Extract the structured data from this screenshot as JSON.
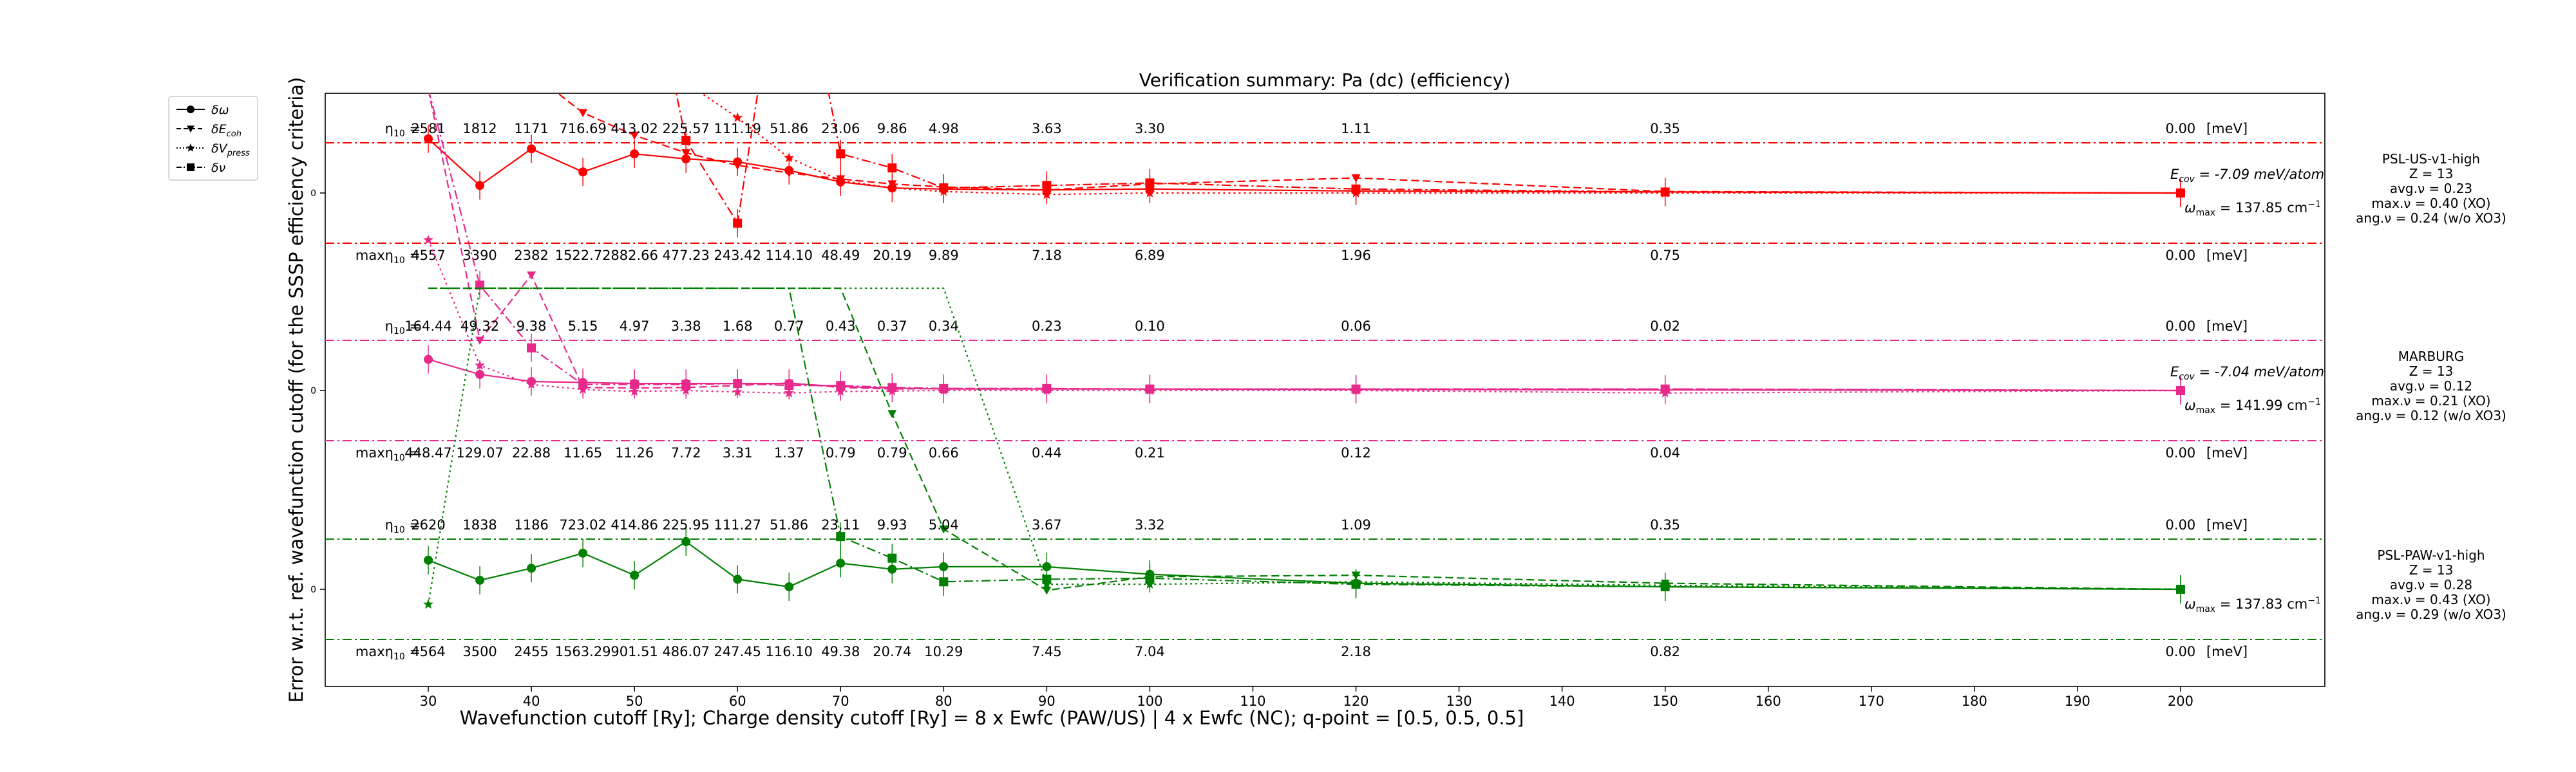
{
  "chart_data": {
    "type": "line",
    "title": "Verification summary: Pa (dc) (efficiency)",
    "xlabel": "Wavefunction cutoff [Ry]; Charge density cutoff [Ry] = 8 x Ewfc (PAW/US) | 4 x Ewfc (NC); q-point = [0.5, 0.5, 0.5]",
    "ylabel": "Error w.r.t. ref. wavefunction cutoff (for the SSSP efficiency criteria)",
    "xlim": [
      20,
      214
    ],
    "xticks": [
      30,
      40,
      50,
      60,
      70,
      80,
      90,
      100,
      110,
      120,
      130,
      140,
      150,
      160,
      170,
      180,
      190,
      200
    ],
    "ytick_label": "0",
    "legend_position": "top-left, outside axes",
    "legend": [
      {
        "label": "δω",
        "marker": "circle",
        "linestyle": "solid"
      },
      {
        "label": "δE_coh",
        "marker": "triangle-down",
        "linestyle": "dashed"
      },
      {
        "label": "δV_press",
        "marker": "star",
        "linestyle": "dotted"
      },
      {
        "label": "δν",
        "marker": "square",
        "linestyle": "dashdot"
      }
    ],
    "cutoffs": [
      30,
      35,
      40,
      45,
      50,
      55,
      60,
      65,
      70,
      75,
      80,
      90,
      100,
      120,
      150,
      200
    ],
    "unit_label": "[meV]",
    "eta_prefix": "η",
    "eta_sub": "10",
    "eta_suffix": " = ",
    "max_prefix": "max",
    "panels": [
      {
        "name": "PSL-US-v1-high",
        "color": "#ff0000",
        "info": [
          "PSL-US-v1-high",
          "Z = 13",
          "avg.ν = 0.23",
          "max.ν = 0.40 (XO)",
          "ang.ν = 0.24 (w/o XO3)"
        ],
        "ecov_label": "E",
        "ecov_sub": "cov",
        "ecov_value": " = -7.09 meV/atom",
        "omega_label": "ω",
        "omega_sub": "max",
        "omega_value": " = 137.85 cm",
        "eta_values": [
          "2581",
          "1812",
          "1171",
          "716.69",
          "413.02",
          "225.57",
          "111.19",
          "51.86",
          "23.06",
          "9.86",
          "4.98",
          "3.63",
          "3.30",
          "1.11",
          "0.35",
          "0.00"
        ],
        "max_eta_values": [
          "4557",
          "3390",
          "2382",
          "1522.72",
          "882.66",
          "477.23",
          "243.42",
          "114.10",
          "48.49",
          "20.19",
          "9.89",
          "7.18",
          "6.89",
          "1.96",
          "0.75",
          "0.00"
        ],
        "series": [
          {
            "name": "δω",
            "x": [
              30,
              35,
              40,
              45,
              50,
              55,
              60,
              65,
              70,
              75,
              80,
              90,
              100,
              120,
              150,
              200
            ],
            "y": [
              1.08,
              0.15,
              0.88,
              0.42,
              0.78,
              0.68,
              0.62,
              0.45,
              0.22,
              0.1,
              0.08,
              0.06,
              0.08,
              0.04,
              0.02,
              0.0
            ]
          },
          {
            "name": "δE_coh",
            "x": [
              30,
              35,
              40,
              45,
              50,
              55,
              60,
              65,
              70,
              75,
              80,
              90,
              100,
              120,
              150,
              200
            ],
            "y": [
              6.0,
              4.0,
              2.4,
              1.6,
              1.15,
              0.8,
              0.55,
              0.4,
              0.28,
              0.18,
              0.12,
              0.06,
              0.18,
              0.3,
              0.03,
              0.0
            ]
          },
          {
            "name": "δV_press",
            "x": [
              30,
              35,
              40,
              45,
              50,
              55,
              60,
              65,
              70,
              75,
              80,
              90,
              100,
              120,
              150,
              200
            ],
            "y": [
              6.0,
              5.5,
              5.0,
              4.0,
              3.2,
              2.2,
              1.5,
              0.7,
              0.25,
              0.1,
              0.03,
              -0.03,
              0.0,
              0.0,
              0.0,
              0.0
            ]
          },
          {
            "name": "δν",
            "x": [
              30,
              35,
              40,
              45,
              50,
              55,
              60,
              65,
              70,
              75,
              80,
              90,
              100,
              120,
              150,
              200
            ],
            "y": [
              6.0,
              6.0,
              6.0,
              6.0,
              6.0,
              1.05,
              -0.6,
              6.0,
              0.78,
              0.5,
              0.1,
              0.15,
              0.2,
              0.08,
              0.02,
              0.0
            ]
          }
        ]
      },
      {
        "name": "MARBURG",
        "color": "#e7298a",
        "info": [
          "MARBURG",
          "Z = 13",
          "avg.ν = 0.12",
          "max.ν = 0.21 (XO)",
          "ang.ν = 0.12 (w/o XO3)"
        ],
        "ecov_label": "E",
        "ecov_sub": "cov",
        "ecov_value": " = -7.04 meV/atom",
        "omega_label": "ω",
        "omega_sub": "max",
        "omega_value": " = 141.99 cm",
        "eta_values": [
          "164.44",
          "49.32",
          "9.38",
          "5.15",
          "4.97",
          "3.38",
          "1.68",
          "0.77",
          "0.43",
          "0.37",
          "0.34",
          "0.23",
          "0.10",
          "0.06",
          "0.02",
          "0.00"
        ],
        "max_eta_values": [
          "448.47",
          "129.07",
          "22.88",
          "11.65",
          "11.26",
          "7.72",
          "3.31",
          "1.37",
          "0.79",
          "0.79",
          "0.66",
          "0.44",
          "0.21",
          "0.12",
          "0.04",
          "0.00"
        ],
        "series": [
          {
            "name": "δω",
            "x": [
              30,
              35,
              40,
              45,
              50,
              55,
              60,
              65,
              70,
              75,
              80,
              90,
              100,
              120,
              150,
              200
            ],
            "y": [
              0.62,
              0.32,
              0.18,
              0.16,
              0.14,
              0.14,
              0.14,
              0.14,
              0.08,
              0.05,
              0.03,
              0.03,
              0.03,
              0.02,
              0.01,
              0.0
            ]
          },
          {
            "name": "δE_coh",
            "x": [
              30,
              35,
              40,
              45,
              50,
              55,
              60,
              65,
              70,
              75,
              80,
              90,
              100,
              120,
              150,
              200
            ],
            "y": [
              6.0,
              1.0,
              2.3,
              0.06,
              0.05,
              0.06,
              0.1,
              0.15,
              0.06,
              0.03,
              0.04,
              0.04,
              0.03,
              0.03,
              0.03,
              0.0
            ]
          },
          {
            "name": "δV_press",
            "x": [
              30,
              35,
              40,
              45,
              50,
              55,
              60,
              65,
              70,
              75,
              80,
              90,
              100,
              120,
              150,
              200
            ],
            "y": [
              3.0,
              0.5,
              0.12,
              0.02,
              -0.02,
              0.0,
              -0.03,
              -0.05,
              -0.02,
              -0.01,
              0.0,
              0.0,
              0.0,
              0.0,
              -0.05,
              0.0
            ]
          },
          {
            "name": "δν",
            "x": [
              30,
              35,
              40,
              45,
              50,
              55,
              60,
              65,
              70,
              75,
              80,
              90,
              100,
              120,
              150,
              200
            ],
            "y": [
              6.0,
              2.1,
              0.85,
              0.12,
              0.12,
              0.12,
              0.14,
              0.1,
              0.1,
              0.06,
              0.04,
              0.04,
              0.03,
              0.03,
              0.03,
              0.0
            ]
          }
        ]
      },
      {
        "name": "PSL-PAW-v1-high",
        "color": "#008000",
        "info": [
          "PSL-PAW-v1-high",
          "Z = 13",
          "avg.ν = 0.28",
          "max.ν = 0.43 (XO)",
          "ang.ν = 0.29 (w/o XO3)"
        ],
        "ecov_label": "",
        "ecov_sub": "",
        "ecov_value": "",
        "omega_label": "ω",
        "omega_sub": "max",
        "omega_value": " = 137.83 cm",
        "eta_values": [
          "2620",
          "1838",
          "1186",
          "723.02",
          "414.86",
          "225.95",
          "111.27",
          "51.86",
          "23.11",
          "9.93",
          "5.04",
          "3.67",
          "3.32",
          "1.09",
          "0.35",
          "0.00"
        ],
        "max_eta_values": [
          "4564",
          "3500",
          "2455",
          "1563.29",
          "901.51",
          "486.07",
          "247.45",
          "116.10",
          "49.38",
          "20.74",
          "10.29",
          "7.45",
          "7.04",
          "2.18",
          "0.82",
          "0.00"
        ],
        "series": [
          {
            "name": "δω",
            "x": [
              30,
              35,
              40,
              45,
              50,
              55,
              60,
              65,
              70,
              75,
              80,
              90,
              100,
              120,
              150,
              200
            ],
            "y": [
              0.58,
              0.18,
              0.42,
              0.72,
              0.28,
              0.95,
              0.2,
              0.05,
              0.52,
              0.4,
              0.45,
              0.45,
              0.3,
              0.12,
              0.05,
              0.0
            ]
          },
          {
            "name": "δE_coh",
            "x": [
              30,
              35,
              40,
              45,
              50,
              55,
              60,
              65,
              70,
              75,
              80,
              90,
              100,
              120,
              150,
              200
            ],
            "y": [
              6.0,
              6.0,
              6.0,
              6.0,
              6.0,
              6.0,
              6.0,
              6.0,
              6.0,
              3.5,
              1.2,
              -0.02,
              0.25,
              0.28,
              0.12,
              0.0
            ]
          },
          {
            "name": "δV_press",
            "x": [
              30,
              35,
              40,
              45,
              50,
              55,
              60,
              65,
              70,
              75,
              80,
              90,
              100,
              120,
              150,
              200
            ],
            "y": [
              -0.3,
              6.0,
              6.0,
              6.0,
              6.0,
              6.0,
              6.0,
              6.0,
              6.0,
              6.0,
              6.0,
              0.1,
              0.1,
              0.15,
              0.08,
              0.0
            ]
          },
          {
            "name": "δν",
            "x": [
              30,
              35,
              40,
              45,
              50,
              55,
              60,
              65,
              70,
              75,
              80,
              90,
              100,
              120,
              150,
              200
            ],
            "y": [
              6.0,
              6.0,
              6.0,
              6.0,
              6.0,
              6.0,
              6.0,
              6.0,
              1.05,
              0.62,
              0.15,
              0.2,
              0.22,
              0.1,
              0.05,
              0.0
            ]
          }
        ]
      }
    ]
  }
}
